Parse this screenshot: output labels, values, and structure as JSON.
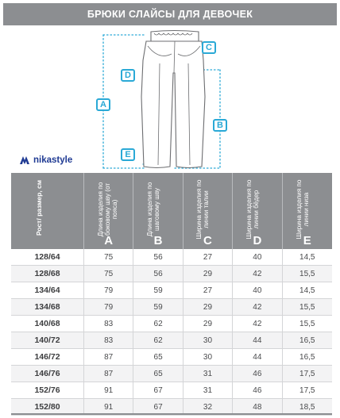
{
  "header": {
    "title": "БРЮКИ СЛАЙСЫ ДЛЯ ДЕВОЧЕК"
  },
  "diagram": {
    "markers": {
      "a": "A",
      "b": "B",
      "c": "C",
      "d": "D",
      "e": "E"
    },
    "accent_color": "#2aa9d6"
  },
  "brand": {
    "name": "nikastyle",
    "icon": "nikastyle-logo-icon"
  },
  "table": {
    "size_header": "Рост/ размер, см",
    "columns": [
      {
        "label": "Длина изделия по боковому шву (от пояса)",
        "letter": "A"
      },
      {
        "label": "Длина изделия по шаговому шву",
        "letter": "B"
      },
      {
        "label": "Ширина изделия по линии талии",
        "letter": "C"
      },
      {
        "label": "Ширина изделия по линии бёдер",
        "letter": "D"
      },
      {
        "label": "Ширина изделия по линии низа",
        "letter": "E"
      }
    ],
    "rows": [
      {
        "size": "128/64",
        "values": [
          "75",
          "56",
          "27",
          "40",
          "14,5"
        ]
      },
      {
        "size": "128/68",
        "values": [
          "75",
          "56",
          "29",
          "42",
          "15,5"
        ]
      },
      {
        "size": "134/64",
        "values": [
          "79",
          "59",
          "27",
          "40",
          "14,5"
        ]
      },
      {
        "size": "134/68",
        "values": [
          "79",
          "59",
          "29",
          "42",
          "15,5"
        ]
      },
      {
        "size": "140/68",
        "values": [
          "83",
          "62",
          "29",
          "42",
          "15,5"
        ]
      },
      {
        "size": "140/72",
        "values": [
          "83",
          "62",
          "30",
          "44",
          "16,5"
        ]
      },
      {
        "size": "146/72",
        "values": [
          "87",
          "65",
          "30",
          "44",
          "16,5"
        ]
      },
      {
        "size": "146/76",
        "values": [
          "87",
          "65",
          "31",
          "46",
          "17,5"
        ]
      },
      {
        "size": "152/76",
        "values": [
          "91",
          "67",
          "31",
          "46",
          "17,5"
        ]
      },
      {
        "size": "152/80",
        "values": [
          "91",
          "67",
          "32",
          "48",
          "18,5"
        ]
      }
    ]
  }
}
